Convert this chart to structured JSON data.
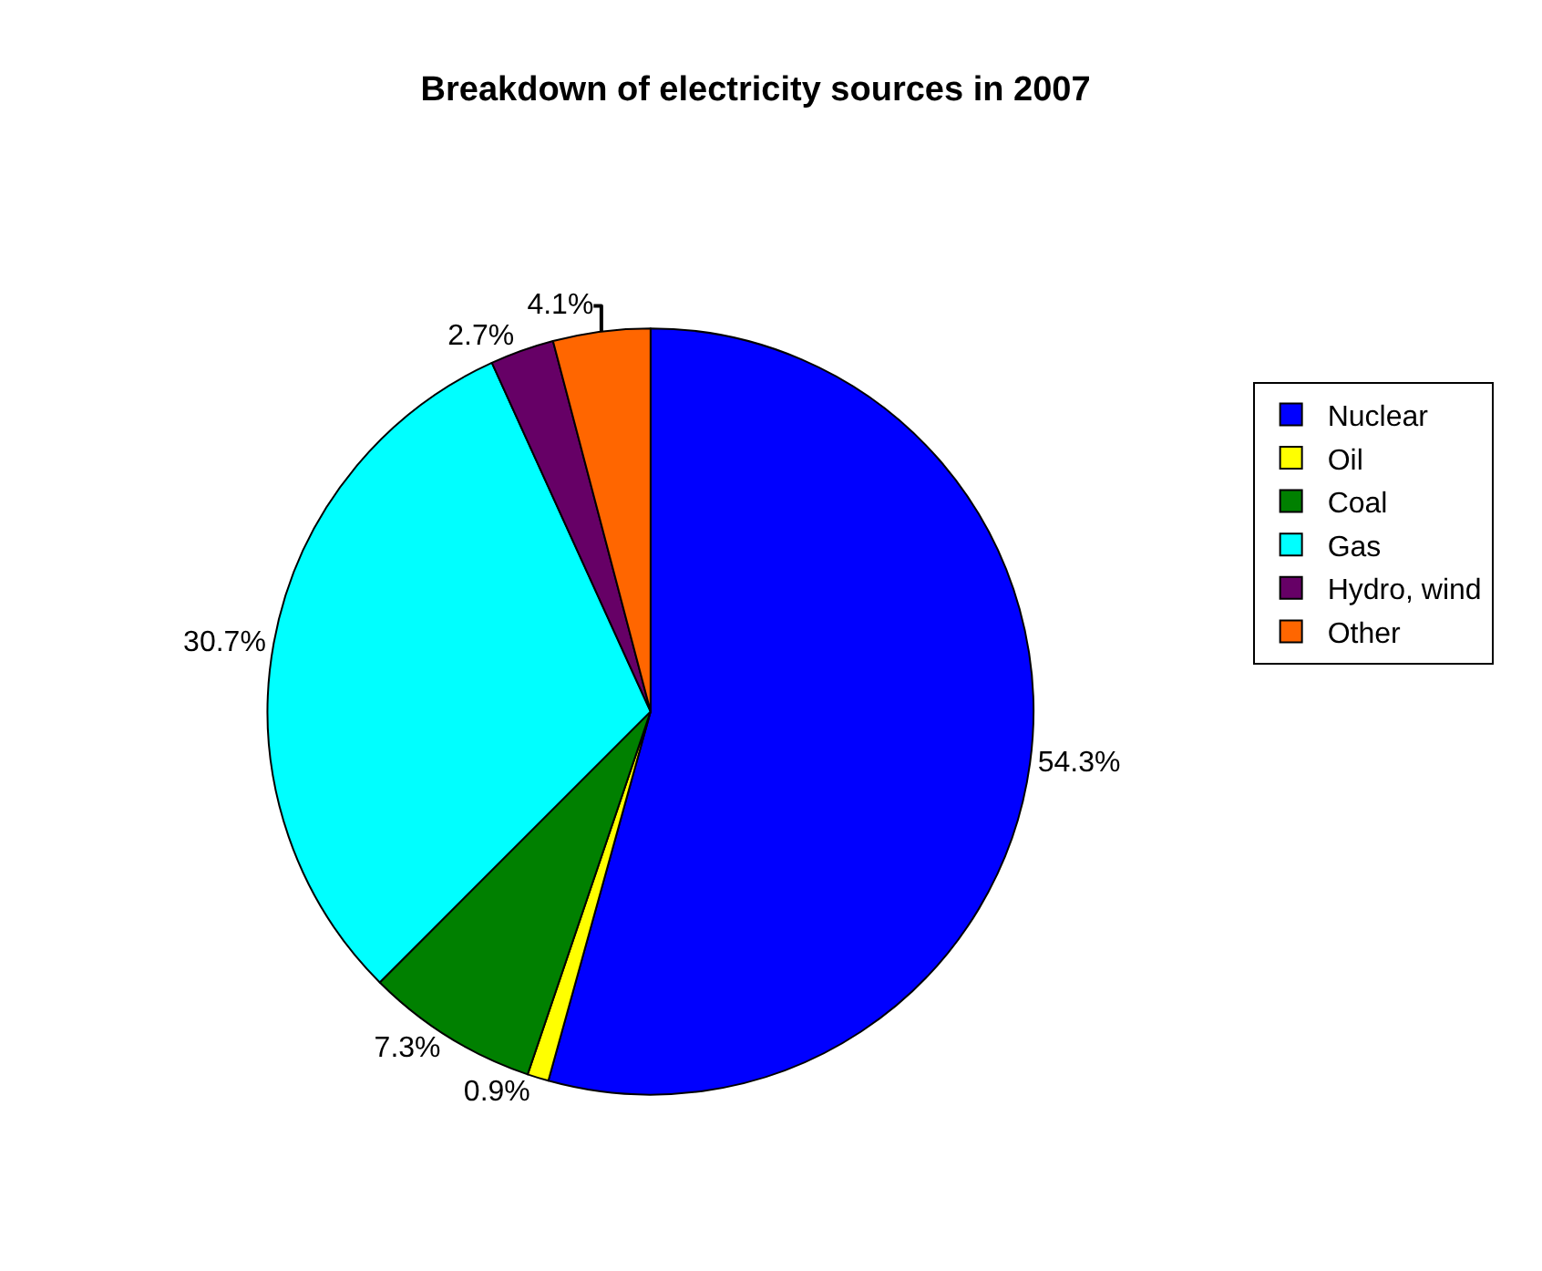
{
  "chart_data": {
    "type": "pie",
    "title": "Breakdown of electricity sources in 2007",
    "categories": [
      "Nuclear",
      "Oil",
      "Coal",
      "Gas",
      "Hydro, wind",
      "Other"
    ],
    "values": [
      54.3,
      0.9,
      7.3,
      30.7,
      2.7,
      4.1
    ],
    "value_labels": [
      "54.3%",
      "0.9%",
      "7.3%",
      "30.7%",
      "2.7%",
      "4.1%"
    ],
    "colors": [
      "#0000ff",
      "#ffff00",
      "#008000",
      "#00ffff",
      "#660066",
      "#ff6600"
    ],
    "legend": "right"
  }
}
